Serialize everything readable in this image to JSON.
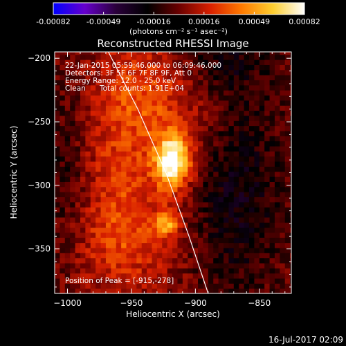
{
  "colorbar": {
    "ticks": [
      "-0.00082",
      "-0.00049",
      "-0.00016",
      "0.00016",
      "0.00049",
      "0.00082"
    ],
    "unit_label": "(photons cm⁻² s⁻¹ asec⁻²)",
    "colors": [
      "#0000ff",
      "#6600cc",
      "#2a003a",
      "#000000",
      "#6a0000",
      "#d92000",
      "#ff7a00",
      "#ffcf30",
      "#ffffff"
    ]
  },
  "title": "Reconstructed RHESSI Image",
  "info": {
    "time_range": "22-Jan-2015 05:59:46.000 to 06:09:46.000",
    "detectors": "Detectors: 3F 5F 6F 7F 8F 9F, Att 0",
    "energy": "Energy Range: 12.0 - 25.0 keV",
    "method": "Clean",
    "total_counts": "Total counts: 1.91E+04",
    "peak": "Position of Peak = [-915,-278]"
  },
  "footer_date": "16-Jul-2017 02:09",
  "chart_data": {
    "type": "heatmap",
    "title": "Reconstructed RHESSI Image",
    "xlabel": "Heliocentric X (arcsec)",
    "ylabel": "Heliocentric Y (arcsec)",
    "xlim": [
      -1010,
      -825
    ],
    "ylim": [
      -385,
      -195
    ],
    "xticks": [
      -1000,
      -950,
      -900,
      -850
    ],
    "yticks": [
      -350,
      -300,
      -250,
      -200
    ],
    "xtick_labels": [
      "−1000",
      "−950",
      "−900",
      "−850"
    ],
    "ytick_labels": [
      "−350",
      "−300",
      "−250",
      "−200"
    ],
    "value_range": [
      -0.00082,
      0.00082
    ],
    "peak_position": [
      -915,
      -278
    ],
    "limb_line": [
      [
        -968,
        -195
      ],
      [
        -945,
        -240
      ],
      [
        -923,
        -290
      ],
      [
        -905,
        -340
      ],
      [
        -890,
        -385
      ]
    ],
    "sources": [
      {
        "x": -918,
        "y": -280,
        "sx": 9,
        "sy": 14,
        "amp": 0.00082
      },
      {
        "x": -922,
        "y": -330,
        "sx": 6,
        "sy": 6,
        "amp": 0.00045
      },
      {
        "x": -958,
        "y": -285,
        "sx": 30,
        "sy": 60,
        "amp": 0.00025
      },
      {
        "x": -940,
        "y": -225,
        "sx": 20,
        "sy": 25,
        "amp": 0.00018
      },
      {
        "x": -900,
        "y": -250,
        "sx": 20,
        "sy": 35,
        "amp": 0.00014
      },
      {
        "x": -955,
        "y": -345,
        "sx": 30,
        "sy": 25,
        "amp": 0.00015
      },
      {
        "x": -870,
        "y": -300,
        "sx": 25,
        "sy": 60,
        "amp": -0.00024
      },
      {
        "x": -1000,
        "y": -290,
        "sx": 15,
        "sy": 50,
        "amp": -0.00018
      },
      {
        "x": -880,
        "y": -200,
        "sx": 25,
        "sy": 20,
        "amp": -0.00015
      }
    ]
  }
}
